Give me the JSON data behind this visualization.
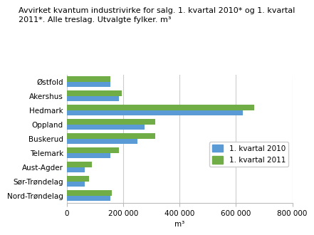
{
  "title_line1": "Avvirket kvantum industrivirke for salg. 1. kvartal 2010* og 1. kvartal",
  "title_line2": "2011*. Alle treslag. Utvalgte fylker. m³",
  "categories": [
    "Østfold",
    "Akershus",
    "Hedmark",
    "Oppland",
    "Buskerud",
    "Telemark",
    "Aust-Agder",
    "Sør-Trøndelag",
    "Nord-Trøndelag"
  ],
  "values_2010": [
    155000,
    185000,
    625000,
    275000,
    250000,
    155000,
    65000,
    65000,
    155000
  ],
  "values_2011": [
    155000,
    195000,
    665000,
    315000,
    315000,
    185000,
    90000,
    78000,
    160000
  ],
  "color_2010": "#5b9bd5",
  "color_2011": "#70ad47",
  "legend_labels": [
    "1. kvartal 2010",
    "1. kvartal 2011"
  ],
  "xlabel": "m³",
  "xlim": [
    0,
    800000
  ],
  "xticks": [
    0,
    200000,
    400000,
    600000,
    800000
  ],
  "xtick_labels": [
    "0",
    "200 000",
    "400 000",
    "600 000",
    "800 000"
  ],
  "background_color": "#ffffff",
  "grid_color": "#cccccc",
  "title_fontsize": 8,
  "tick_fontsize": 7.5,
  "legend_fontsize": 7.5,
  "bar_height": 0.38
}
